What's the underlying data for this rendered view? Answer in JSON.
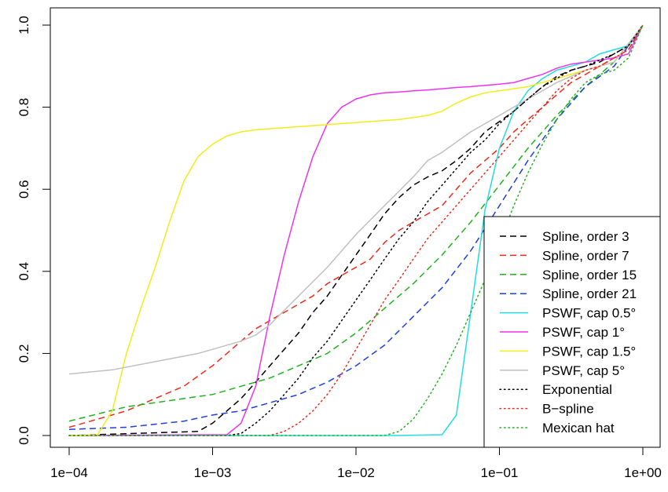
{
  "chart_data": {
    "type": "line",
    "title": "",
    "xlabel": "",
    "ylabel": "",
    "x_scale": "log10",
    "xlim": [
      0.0001,
      1
    ],
    "ylim": [
      0,
      1
    ],
    "x_ticks": [
      {
        "value": 0.0001,
        "label": "1e−04"
      },
      {
        "value": 0.001,
        "label": "1e−03"
      },
      {
        "value": 0.01,
        "label": "1e−02"
      },
      {
        "value": 0.1,
        "label": "1e−01"
      },
      {
        "value": 1,
        "label": "1e+00"
      }
    ],
    "y_ticks": [
      {
        "value": 0.0,
        "label": "0.0"
      },
      {
        "value": 0.2,
        "label": "0.2"
      },
      {
        "value": 0.4,
        "label": "0.4"
      },
      {
        "value": 0.6,
        "label": "0.6"
      },
      {
        "value": 0.8,
        "label": "0.8"
      },
      {
        "value": 1.0,
        "label": "1.0"
      }
    ],
    "grid": false,
    "legend_position": "bottom-right",
    "series": [
      {
        "name": "Spline, order 3",
        "color": "#000000",
        "style": "dashed",
        "x": [
          0.0001,
          0.000794,
          0.001,
          0.00126,
          0.00158,
          0.002,
          0.00251,
          0.00316,
          0.00398,
          0.00501,
          0.00631,
          0.00794,
          0.01,
          0.0126,
          0.0158,
          0.02,
          0.0251,
          0.0316,
          0.0398,
          0.0501,
          0.0631,
          0.0794,
          0.1,
          0.126,
          0.158,
          0.2,
          0.251,
          0.316,
          0.398,
          0.501,
          0.631,
          0.794,
          1
        ],
        "y": [
          0,
          0.01,
          0.03,
          0.06,
          0.09,
          0.13,
          0.17,
          0.21,
          0.25,
          0.3,
          0.34,
          0.39,
          0.44,
          0.49,
          0.54,
          0.58,
          0.61,
          0.63,
          0.645,
          0.67,
          0.7,
          0.74,
          0.765,
          0.79,
          0.82,
          0.85,
          0.875,
          0.89,
          0.9,
          0.91,
          0.93,
          0.95,
          1.0
        ]
      },
      {
        "name": "Spline, order 7",
        "color": "#ee2a1b",
        "style": "dashed",
        "x": [
          0.0001,
          0.000158,
          0.000251,
          0.000398,
          0.000631,
          0.001,
          0.00126,
          0.00158,
          0.002,
          0.00251,
          0.00316,
          0.00398,
          0.00501,
          0.00631,
          0.00794,
          0.01,
          0.0126,
          0.0158,
          0.02,
          0.0251,
          0.0316,
          0.0398,
          0.0501,
          0.0631,
          0.0794,
          0.1,
          0.126,
          0.158,
          0.2,
          0.251,
          0.316,
          0.398,
          0.501,
          0.631,
          0.794,
          1
        ],
        "y": [
          0.02,
          0.04,
          0.06,
          0.09,
          0.12,
          0.17,
          0.2,
          0.23,
          0.26,
          0.28,
          0.3,
          0.32,
          0.34,
          0.37,
          0.39,
          0.41,
          0.43,
          0.47,
          0.5,
          0.52,
          0.54,
          0.56,
          0.6,
          0.64,
          0.67,
          0.7,
          0.74,
          0.77,
          0.8,
          0.83,
          0.86,
          0.88,
          0.9,
          0.92,
          0.94,
          1.0
        ]
      },
      {
        "name": "Spline, order 15",
        "color": "#1db31d",
        "style": "dashed",
        "x": [
          0.0001,
          0.000251,
          0.000631,
          0.001,
          0.00158,
          0.00251,
          0.00398,
          0.00631,
          0.01,
          0.0158,
          0.0251,
          0.0398,
          0.0631,
          0.1,
          0.158,
          0.251,
          0.398,
          0.631,
          1
        ],
        "y": [
          0.035,
          0.07,
          0.09,
          0.1,
          0.12,
          0.14,
          0.17,
          0.2,
          0.25,
          0.31,
          0.37,
          0.44,
          0.52,
          0.61,
          0.7,
          0.78,
          0.85,
          0.91,
          1.0
        ]
      },
      {
        "name": "Spline, order 21",
        "color": "#1f3fe0",
        "style": "dashed",
        "x": [
          0.0001,
          0.000251,
          0.000631,
          0.001,
          0.00158,
          0.00251,
          0.00398,
          0.00631,
          0.01,
          0.0158,
          0.0251,
          0.0398,
          0.0631,
          0.1,
          0.158,
          0.251,
          0.398,
          0.631,
          1
        ],
        "y": [
          0.015,
          0.02,
          0.035,
          0.05,
          0.06,
          0.08,
          0.1,
          0.13,
          0.17,
          0.22,
          0.29,
          0.36,
          0.45,
          0.56,
          0.67,
          0.77,
          0.85,
          0.9,
          1.0
        ]
      },
      {
        "name": "PSWF, cap 0.5°",
        "color": "#22dde0",
        "style": "solid",
        "x": [
          0.0001,
          0.01,
          0.02,
          0.0398,
          0.0501,
          0.0631,
          0.0794,
          0.1,
          0.126,
          0.158,
          0.2,
          0.251,
          0.316,
          0.398,
          0.501,
          0.631,
          0.794,
          1
        ],
        "y": [
          0,
          0,
          0,
          0.002,
          0.05,
          0.3,
          0.55,
          0.7,
          0.79,
          0.84,
          0.87,
          0.89,
          0.9,
          0.91,
          0.93,
          0.94,
          0.95,
          1.0
        ]
      },
      {
        "name": "PSWF, cap 1°",
        "color": "#ee33ee",
        "style": "solid",
        "x": [
          0.0001,
          0.00126,
          0.00158,
          0.002,
          0.00251,
          0.00316,
          0.00398,
          0.00501,
          0.00631,
          0.00794,
          0.01,
          0.0126,
          0.0158,
          0.02,
          0.0251,
          0.0316,
          0.0398,
          0.0501,
          0.0631,
          0.0794,
          0.1,
          0.126,
          0.158,
          0.2,
          0.251,
          0.316,
          0.398,
          0.501,
          0.631,
          0.794,
          1
        ],
        "y": [
          0,
          0.002,
          0.03,
          0.12,
          0.29,
          0.44,
          0.57,
          0.68,
          0.76,
          0.8,
          0.82,
          0.83,
          0.835,
          0.837,
          0.84,
          0.842,
          0.845,
          0.848,
          0.85,
          0.853,
          0.856,
          0.86,
          0.87,
          0.88,
          0.895,
          0.905,
          0.91,
          0.915,
          0.92,
          0.93,
          1.0
        ]
      },
      {
        "name": "PSWF, cap 1.5°",
        "color": "#f2ec1a",
        "style": "solid",
        "x": [
          0.0001,
          0.000158,
          0.0002,
          0.000251,
          0.000316,
          0.000398,
          0.000501,
          0.000631,
          0.000794,
          0.001,
          0.00126,
          0.00158,
          0.002,
          0.00316,
          0.00501,
          0.00794,
          0.0126,
          0.02,
          0.0316,
          0.0398,
          0.0501,
          0.0631,
          0.0794,
          0.1,
          0.158,
          0.251,
          0.398,
          0.631,
          1
        ],
        "y": [
          0,
          0.002,
          0.06,
          0.2,
          0.31,
          0.41,
          0.52,
          0.62,
          0.68,
          0.71,
          0.73,
          0.74,
          0.745,
          0.75,
          0.755,
          0.76,
          0.765,
          0.77,
          0.78,
          0.79,
          0.81,
          0.825,
          0.835,
          0.84,
          0.85,
          0.87,
          0.89,
          0.91,
          1.0
        ]
      },
      {
        "name": "PSWF, cap 5°",
        "color": "#c0c0c0",
        "style": "solid",
        "x": [
          0.0001,
          0.0002,
          0.000398,
          0.000794,
          0.001,
          0.00158,
          0.002,
          0.00251,
          0.00398,
          0.00631,
          0.01,
          0.0158,
          0.0251,
          0.0316,
          0.0398,
          0.0631,
          0.1,
          0.158,
          0.251,
          0.398,
          0.631,
          1
        ],
        "y": [
          0.15,
          0.16,
          0.18,
          0.2,
          0.21,
          0.23,
          0.245,
          0.27,
          0.34,
          0.41,
          0.49,
          0.56,
          0.63,
          0.67,
          0.69,
          0.74,
          0.78,
          0.82,
          0.86,
          0.89,
          0.91,
          1.0
        ]
      },
      {
        "name": "Exponential",
        "color": "#000000",
        "style": "dotted",
        "x": [
          0.0001,
          0.00126,
          0.00158,
          0.002,
          0.00251,
          0.00316,
          0.00398,
          0.00501,
          0.00631,
          0.00794,
          0.01,
          0.0126,
          0.0158,
          0.02,
          0.0251,
          0.0316,
          0.0398,
          0.0501,
          0.0631,
          0.0794,
          0.1,
          0.126,
          0.158,
          0.2,
          0.251,
          0.316,
          0.398,
          0.501,
          0.631,
          0.794,
          1
        ],
        "y": [
          0,
          0,
          0.005,
          0.03,
          0.06,
          0.1,
          0.14,
          0.19,
          0.23,
          0.28,
          0.33,
          0.38,
          0.43,
          0.48,
          0.52,
          0.57,
          0.61,
          0.65,
          0.69,
          0.72,
          0.76,
          0.79,
          0.82,
          0.85,
          0.87,
          0.89,
          0.9,
          0.915,
          0.93,
          0.95,
          1.0
        ]
      },
      {
        "name": "B−spline",
        "color": "#ee2a1b",
        "style": "dotted",
        "x": [
          0.0001,
          0.00251,
          0.00316,
          0.00398,
          0.00501,
          0.00631,
          0.00794,
          0.01,
          0.0126,
          0.0158,
          0.02,
          0.0251,
          0.0316,
          0.0398,
          0.0501,
          0.0631,
          0.0794,
          0.1,
          0.126,
          0.158,
          0.2,
          0.251,
          0.316,
          0.398,
          0.501,
          0.631,
          0.794,
          1
        ],
        "y": [
          0,
          0,
          0.01,
          0.03,
          0.06,
          0.1,
          0.15,
          0.21,
          0.27,
          0.33,
          0.38,
          0.43,
          0.48,
          0.52,
          0.56,
          0.6,
          0.64,
          0.68,
          0.72,
          0.76,
          0.8,
          0.84,
          0.87,
          0.89,
          0.9,
          0.92,
          0.94,
          1.0
        ]
      },
      {
        "name": "Mexican hat",
        "color": "#1db31d",
        "style": "dotted",
        "x": [
          0.0001,
          0.0158,
          0.02,
          0.0251,
          0.0316,
          0.0398,
          0.0501,
          0.0631,
          0.0794,
          0.1,
          0.126,
          0.158,
          0.2,
          0.251,
          0.316,
          0.398,
          0.501,
          0.631,
          0.794,
          1
        ],
        "y": [
          0,
          0,
          0.01,
          0.04,
          0.09,
          0.15,
          0.22,
          0.3,
          0.38,
          0.47,
          0.56,
          0.64,
          0.71,
          0.77,
          0.82,
          0.86,
          0.88,
          0.89,
          0.92,
          1.0
        ]
      }
    ]
  }
}
